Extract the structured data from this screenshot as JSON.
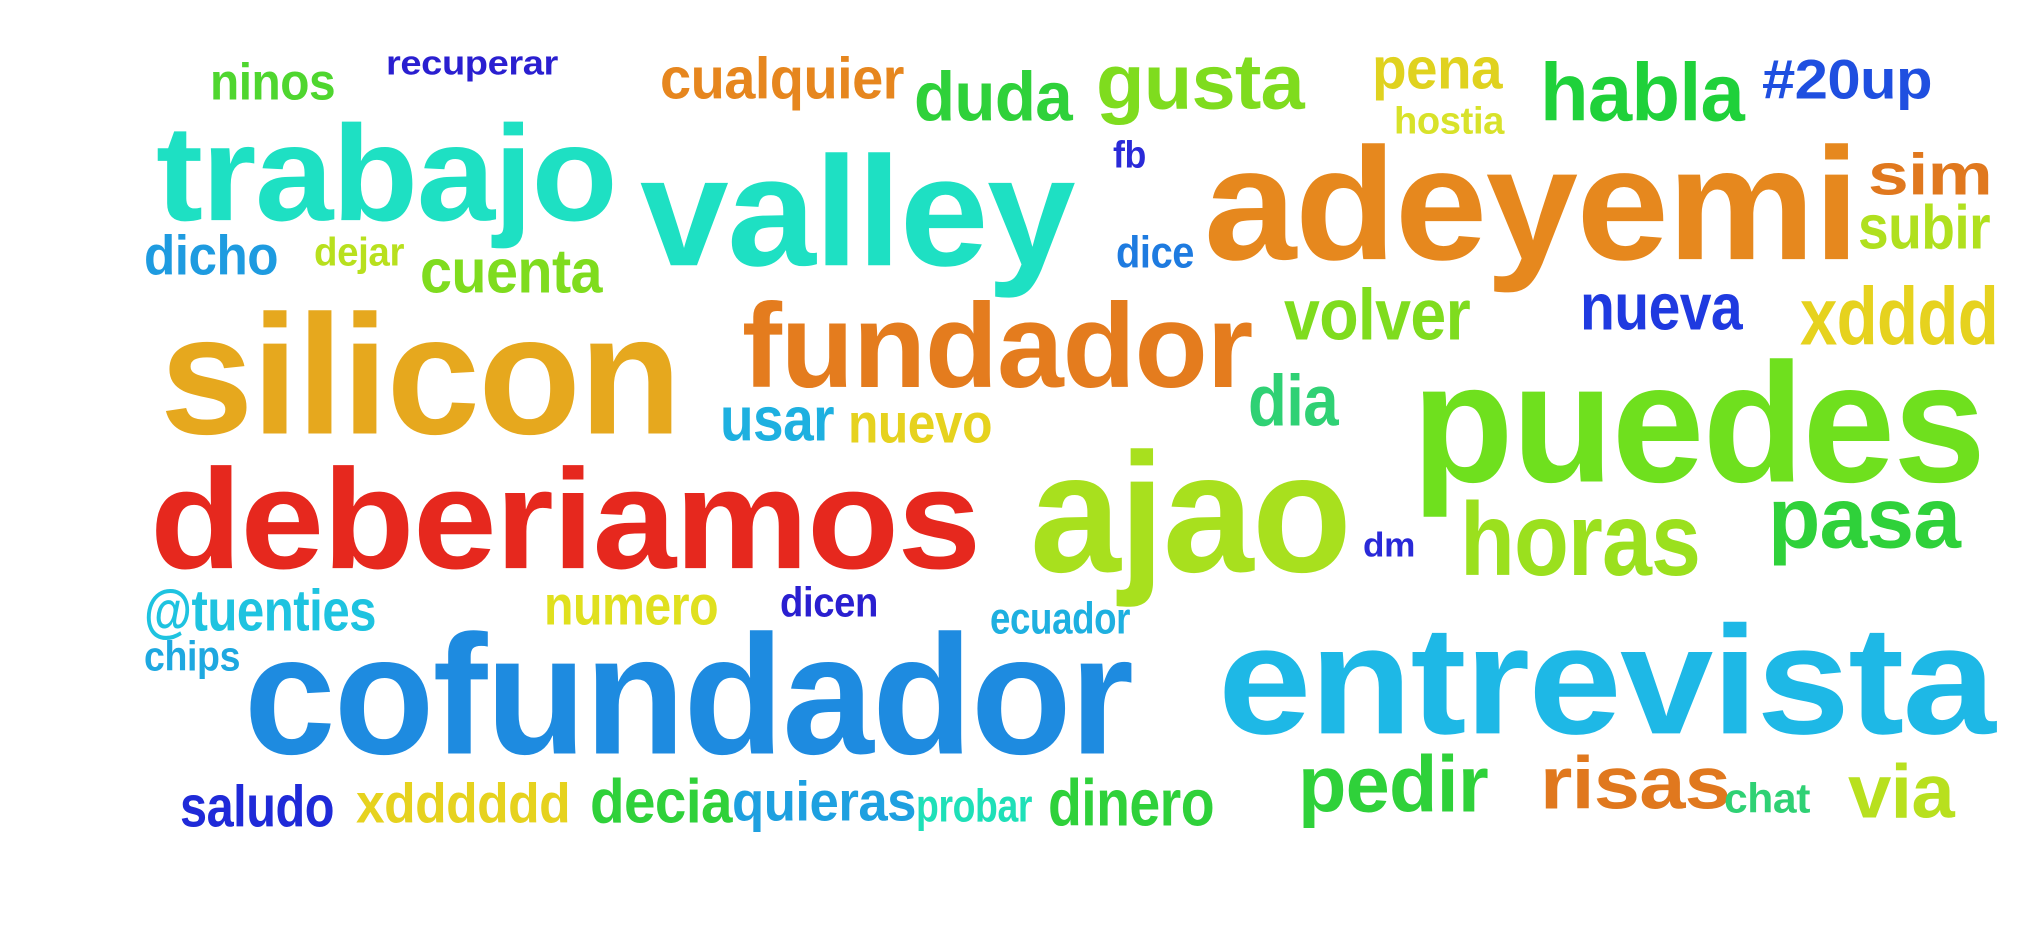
{
  "words": [
    {
      "text": "ninos",
      "color": "#4fd62f"
    },
    {
      "text": "recuperar",
      "color": "#2a1fd0"
    },
    {
      "text": "cualquier",
      "color": "#e6861e"
    },
    {
      "text": "duda",
      "color": "#2fd13a"
    },
    {
      "text": "gusta",
      "color": "#7fdc1e"
    },
    {
      "text": "pena",
      "color": "#e0d21f"
    },
    {
      "text": "hostia",
      "color": "#d8e22a"
    },
    {
      "text": "habla",
      "color": "#1fd13a"
    },
    {
      "text": "#20up",
      "color": "#1f4fe0"
    },
    {
      "text": "trabajo",
      "color": "#1ee0c3"
    },
    {
      "text": "valley",
      "color": "#1ee0c3"
    },
    {
      "text": "fb",
      "color": "#2a2ad8"
    },
    {
      "text": "adeyemi",
      "color": "#e6881e"
    },
    {
      "text": "sim",
      "color": "#e0781e"
    },
    {
      "text": "subir",
      "color": "#b0e01e"
    },
    {
      "text": "dicho",
      "color": "#1e9be0"
    },
    {
      "text": "dejar",
      "color": "#b8e01e"
    },
    {
      "text": "cuenta",
      "color": "#7fdc1e"
    },
    {
      "text": "dice",
      "color": "#1e7be0"
    },
    {
      "text": "silicon",
      "color": "#e6a81e"
    },
    {
      "text": "fundador",
      "color": "#e47c1e"
    },
    {
      "text": "volver",
      "color": "#7fdc1e"
    },
    {
      "text": "nueva",
      "color": "#1f3ae0"
    },
    {
      "text": "xdddd",
      "color": "#e6d21e"
    },
    {
      "text": "usar",
      "color": "#1eb0e0"
    },
    {
      "text": "nuevo",
      "color": "#e6d21e"
    },
    {
      "text": "dia",
      "color": "#2fd174"
    },
    {
      "text": "puedes",
      "color": "#6fe01e"
    },
    {
      "text": "deberiamos",
      "color": "#e6281e"
    },
    {
      "text": "ajao",
      "color": "#a8e01e"
    },
    {
      "text": "dm",
      "color": "#2a2ad8"
    },
    {
      "text": "horas",
      "color": "#9be01e"
    },
    {
      "text": "pasa",
      "color": "#2fd13a"
    },
    {
      "text": "@tuenties",
      "color": "#1ec3e0"
    },
    {
      "text": "numero",
      "color": "#e0e01e"
    },
    {
      "text": "dicen",
      "color": "#2a1fd0"
    },
    {
      "text": "ecuador",
      "color": "#1eb0e0"
    },
    {
      "text": "chips",
      "color": "#1ea8e0"
    },
    {
      "text": "cofundador",
      "color": "#1e8be0"
    },
    {
      "text": "entrevista",
      "color": "#1eb8e6"
    },
    {
      "text": "saludo",
      "color": "#1f2ad8"
    },
    {
      "text": "xdddddd",
      "color": "#e6d21e"
    },
    {
      "text": "decia",
      "color": "#2fd13a"
    },
    {
      "text": "quieras",
      "color": "#1ea0e0"
    },
    {
      "text": "probar",
      "color": "#1ee0b8"
    },
    {
      "text": "dinero",
      "color": "#2fd13a"
    },
    {
      "text": "pedir",
      "color": "#2fd13a"
    },
    {
      "text": "risas",
      "color": "#e0781e"
    },
    {
      "text": "chat",
      "color": "#2fd174"
    },
    {
      "text": "via",
      "color": "#b8e01e"
    }
  ]
}
